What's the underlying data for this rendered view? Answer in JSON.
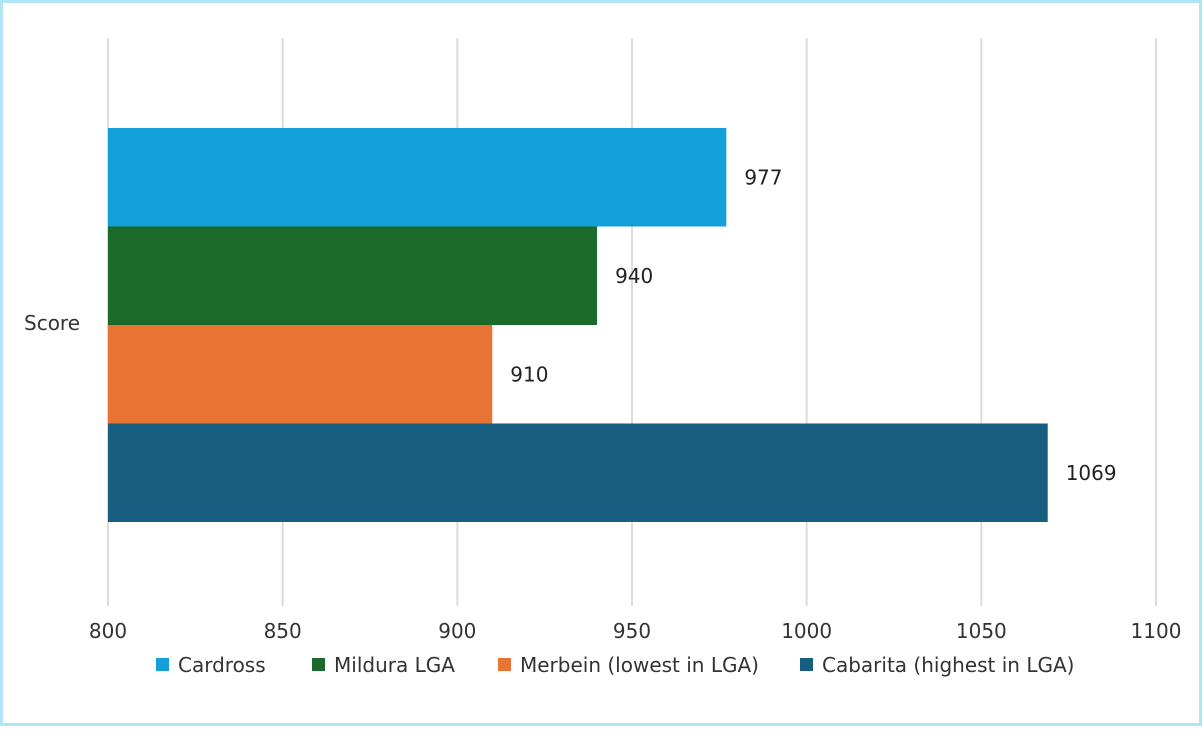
{
  "chart_data": {
    "type": "bar",
    "orientation": "horizontal",
    "categories": [
      "Score"
    ],
    "series": [
      {
        "name": "Cardross",
        "values": [
          977
        ],
        "color": "#139fd8"
      },
      {
        "name": "Mildura LGA",
        "values": [
          940
        ],
        "color": "#1b6a2a"
      },
      {
        "name": "Merbein (lowest in LGA)",
        "values": [
          910
        ],
        "color": "#e87434"
      },
      {
        "name": "Cabarita (highest in LGA)",
        "values": [
          1069
        ],
        "color": "#175e80"
      }
    ],
    "xlim": [
      800,
      1100
    ],
    "xticks": [
      "800",
      "850",
      "900",
      "950",
      "1000",
      "1050",
      "1100"
    ],
    "title": "",
    "xlabel": "",
    "ylabel": "",
    "grid": "vertical",
    "legend": "bottom"
  },
  "frame": {
    "border_color": "#aee6f5",
    "background": "#ffffff"
  }
}
